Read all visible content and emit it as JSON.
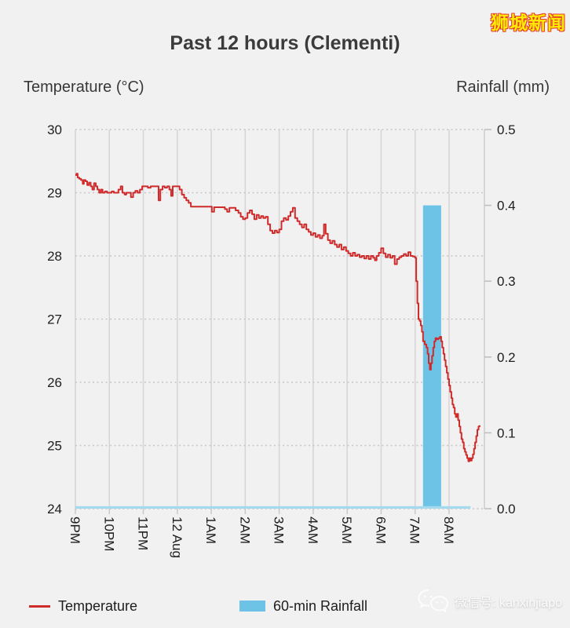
{
  "logo": {
    "text": "狮城新闻",
    "color": "#ffec00",
    "outline_color": "#e6392e"
  },
  "header": {
    "title": "Past 12 hours (Clementi)"
  },
  "axes_titles": {
    "left": "Temperature (°C)",
    "right": "Rainfall (mm)"
  },
  "legend": {
    "temperature_label": "Temperature",
    "rainfall_label": "60-min Rainfall"
  },
  "watermark": {
    "icon": "wechat-icon",
    "text": "微信号: kanxinjiapo"
  },
  "chart_data": {
    "type": "line+bar",
    "title": "Past 12 hours (Clementi)",
    "x_axis": {
      "tick_labels": [
        "9PM",
        "10PM",
        "11PM",
        "12 Aug",
        "1AM",
        "2AM",
        "3AM",
        "4AM",
        "5AM",
        "6AM",
        "7AM",
        "8AM"
      ],
      "minutes_per_tick": 60,
      "label_rotation_deg": 90
    },
    "left_axis": {
      "label": "Temperature (°C)",
      "min": 24,
      "max": 30,
      "ticks": [
        "30",
        "29",
        "28",
        "27",
        "26",
        "25",
        "24"
      ]
    },
    "right_axis": {
      "label": "Rainfall (mm)",
      "min": 0.0,
      "max": 0.5,
      "ticks": [
        "0.5",
        "0.4",
        "0.3",
        "0.2",
        "0.1",
        "0.0"
      ]
    },
    "grid": {
      "vertical_style": "solid",
      "horizontal_style": "dotted"
    },
    "legend_position": "bottom",
    "series": [
      {
        "name": "Temperature",
        "type": "line",
        "color": "#cf2b2b",
        "unit": "°C",
        "points_min_temp": [
          [
            0,
            29.28
          ],
          [
            2,
            29.3
          ],
          [
            4,
            29.24
          ],
          [
            7,
            29.22
          ],
          [
            10,
            29.2
          ],
          [
            13,
            29.14
          ],
          [
            15,
            29.2
          ],
          [
            18,
            29.18
          ],
          [
            21,
            29.12
          ],
          [
            24,
            29.16
          ],
          [
            27,
            29.1
          ],
          [
            30,
            29.05
          ],
          [
            33,
            29.15
          ],
          [
            36,
            29.1
          ],
          [
            39,
            29.05
          ],
          [
            42,
            29.0
          ],
          [
            45,
            29.05
          ],
          [
            48,
            29.0
          ],
          [
            52,
            29.02
          ],
          [
            56,
            29.0
          ],
          [
            60,
            29.0
          ],
          [
            64,
            29.02
          ],
          [
            68,
            29.0
          ],
          [
            72,
            29.0
          ],
          [
            76,
            29.05
          ],
          [
            80,
            29.1
          ],
          [
            83,
            29.0
          ],
          [
            87,
            28.97
          ],
          [
            90,
            29.0
          ],
          [
            94,
            29.0
          ],
          [
            98,
            28.93
          ],
          [
            102,
            29.0
          ],
          [
            106,
            29.03
          ],
          [
            110,
            29.0
          ],
          [
            114,
            29.05
          ],
          [
            118,
            29.1
          ],
          [
            123,
            29.1
          ],
          [
            128,
            29.08
          ],
          [
            133,
            29.1
          ],
          [
            138,
            29.1
          ],
          [
            143,
            29.1
          ],
          [
            147,
            28.88
          ],
          [
            150,
            29.05
          ],
          [
            154,
            29.1
          ],
          [
            158,
            29.08
          ],
          [
            162,
            29.1
          ],
          [
            166,
            29.05
          ],
          [
            169,
            28.95
          ],
          [
            172,
            29.1
          ],
          [
            176,
            29.1
          ],
          [
            180,
            29.1
          ],
          [
            184,
            29.05
          ],
          [
            188,
            28.97
          ],
          [
            192,
            28.92
          ],
          [
            196,
            28.88
          ],
          [
            200,
            28.84
          ],
          [
            204,
            28.78
          ],
          [
            212,
            28.78
          ],
          [
            220,
            28.78
          ],
          [
            228,
            28.78
          ],
          [
            236,
            28.78
          ],
          [
            241,
            28.7
          ],
          [
            245,
            28.77
          ],
          [
            252,
            28.77
          ],
          [
            259,
            28.77
          ],
          [
            264,
            28.74
          ],
          [
            268,
            28.7
          ],
          [
            272,
            28.76
          ],
          [
            278,
            28.76
          ],
          [
            283,
            28.72
          ],
          [
            288,
            28.68
          ],
          [
            292,
            28.62
          ],
          [
            296,
            28.58
          ],
          [
            300,
            28.6
          ],
          [
            304,
            28.68
          ],
          [
            308,
            28.72
          ],
          [
            312,
            28.66
          ],
          [
            316,
            28.58
          ],
          [
            320,
            28.65
          ],
          [
            324,
            28.6
          ],
          [
            328,
            28.63
          ],
          [
            332,
            28.6
          ],
          [
            336,
            28.62
          ],
          [
            340,
            28.5
          ],
          [
            344,
            28.4
          ],
          [
            348,
            28.36
          ],
          [
            352,
            28.4
          ],
          [
            356,
            28.37
          ],
          [
            360,
            28.42
          ],
          [
            364,
            28.55
          ],
          [
            368,
            28.6
          ],
          [
            372,
            28.57
          ],
          [
            376,
            28.63
          ],
          [
            380,
            28.7
          ],
          [
            384,
            28.76
          ],
          [
            388,
            28.6
          ],
          [
            392,
            28.55
          ],
          [
            396,
            28.5
          ],
          [
            400,
            28.45
          ],
          [
            404,
            28.5
          ],
          [
            408,
            28.42
          ],
          [
            412,
            28.38
          ],
          [
            416,
            28.33
          ],
          [
            420,
            28.36
          ],
          [
            424,
            28.3
          ],
          [
            428,
            28.33
          ],
          [
            432,
            28.28
          ],
          [
            436,
            28.32
          ],
          [
            439,
            28.5
          ],
          [
            442,
            28.35
          ],
          [
            446,
            28.25
          ],
          [
            450,
            28.2
          ],
          [
            454,
            28.24
          ],
          [
            458,
            28.18
          ],
          [
            462,
            28.14
          ],
          [
            466,
            28.18
          ],
          [
            470,
            28.1
          ],
          [
            474,
            28.14
          ],
          [
            478,
            28.08
          ],
          [
            482,
            28.04
          ],
          [
            486,
            28.0
          ],
          [
            490,
            28.05
          ],
          [
            494,
            28.0
          ],
          [
            498,
            28.02
          ],
          [
            502,
            27.98
          ],
          [
            506,
            28.0
          ],
          [
            510,
            27.96
          ],
          [
            514,
            28.0
          ],
          [
            518,
            27.95
          ],
          [
            522,
            28.0
          ],
          [
            526,
            27.97
          ],
          [
            529,
            27.93
          ],
          [
            532,
            28.0
          ],
          [
            536,
            28.05
          ],
          [
            540,
            28.12
          ],
          [
            544,
            28.04
          ],
          [
            548,
            27.98
          ],
          [
            552,
            28.02
          ],
          [
            556,
            27.97
          ],
          [
            560,
            28.0
          ],
          [
            564,
            27.87
          ],
          [
            568,
            27.95
          ],
          [
            572,
            27.98
          ],
          [
            576,
            28.0
          ],
          [
            580,
            28.03
          ],
          [
            584,
            28.0
          ],
          [
            588,
            28.06
          ],
          [
            592,
            28.0
          ],
          [
            596,
            27.99
          ],
          [
            600,
            27.97
          ],
          [
            602,
            27.6
          ],
          [
            604,
            27.25
          ],
          [
            606,
            27.0
          ],
          [
            608,
            26.97
          ],
          [
            610,
            26.9
          ],
          [
            612,
            26.8
          ],
          [
            614,
            26.65
          ],
          [
            617,
            26.6
          ],
          [
            620,
            26.55
          ],
          [
            622,
            26.45
          ],
          [
            624,
            26.3
          ],
          [
            626,
            26.2
          ],
          [
            628,
            26.3
          ],
          [
            630,
            26.42
          ],
          [
            632,
            26.55
          ],
          [
            634,
            26.65
          ],
          [
            636,
            26.7
          ],
          [
            638,
            26.68
          ],
          [
            641,
            26.7
          ],
          [
            644,
            26.72
          ],
          [
            646,
            26.65
          ],
          [
            648,
            26.55
          ],
          [
            650,
            26.45
          ],
          [
            652,
            26.35
          ],
          [
            654,
            26.25
          ],
          [
            656,
            26.15
          ],
          [
            658,
            26.05
          ],
          [
            660,
            25.95
          ],
          [
            662,
            25.85
          ],
          [
            664,
            25.75
          ],
          [
            666,
            25.65
          ],
          [
            668,
            25.6
          ],
          [
            670,
            25.5
          ],
          [
            672,
            25.45
          ],
          [
            674,
            25.5
          ],
          [
            676,
            25.4
          ],
          [
            678,
            25.3
          ],
          [
            680,
            25.2
          ],
          [
            682,
            25.1
          ],
          [
            684,
            25.05
          ],
          [
            686,
            24.95
          ],
          [
            688,
            24.9
          ],
          [
            690,
            24.85
          ],
          [
            692,
            24.8
          ],
          [
            694,
            24.75
          ],
          [
            696,
            24.8
          ],
          [
            698,
            24.76
          ],
          [
            700,
            24.8
          ],
          [
            702,
            24.86
          ],
          [
            704,
            24.95
          ],
          [
            706,
            25.05
          ],
          [
            708,
            25.15
          ],
          [
            710,
            25.25
          ],
          [
            712,
            25.3
          ],
          [
            714,
            25.32
          ]
        ]
      },
      {
        "name": "60-min Rainfall",
        "type": "bar",
        "color": "#6cc3e6",
        "unit": "mm",
        "bars": [
          {
            "start_min": 614,
            "end_min": 646,
            "value_mm": 0.4
          }
        ],
        "zero_baseline": {
          "from_min": 0,
          "to_min": 698,
          "value_mm": 0.0,
          "color": "#a5d9ee"
        }
      }
    ]
  }
}
